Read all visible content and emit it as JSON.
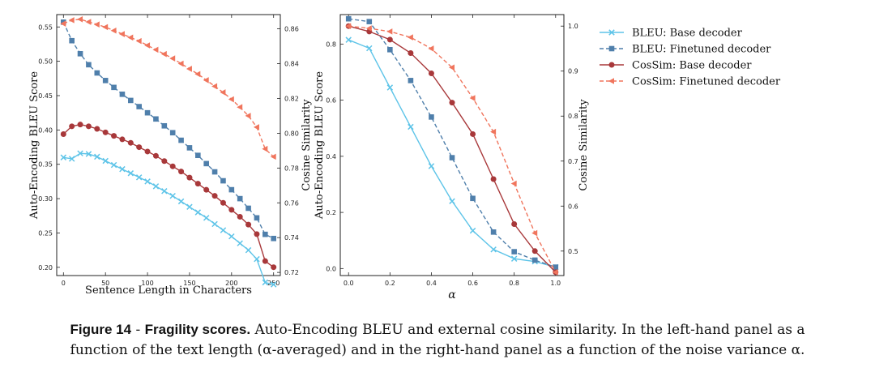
{
  "chart_data": [
    {
      "type": "line",
      "xlabel": "Sentence Length in Characters",
      "ylabel": "Auto-Encoding BLEU Score",
      "y2label": "Cosine Similarity",
      "xlim": [
        -8,
        258
      ],
      "ylim": [
        0.188,
        0.568
      ],
      "y2lim": [
        0.7182,
        0.8682
      ],
      "xticks": [
        0,
        50,
        100,
        150,
        200,
        250
      ],
      "yticks": [
        0.2,
        0.25,
        0.3,
        0.35,
        0.4,
        0.45,
        0.5,
        0.55
      ],
      "y2ticks": [
        0.72,
        0.74,
        0.76,
        0.78,
        0.8,
        0.82,
        0.84,
        0.86
      ],
      "series": [
        {
          "name": "BLEU: Base decoder",
          "axis": "left",
          "color": "#5ec4e8",
          "marker": "x",
          "dash": "solid",
          "x": [
            0,
            10,
            20,
            30,
            40,
            50,
            60,
            70,
            80,
            90,
            100,
            110,
            120,
            130,
            140,
            150,
            160,
            170,
            180,
            190,
            200,
            210,
            220,
            230,
            240,
            250
          ],
          "y": [
            0.36,
            0.358,
            0.366,
            0.365,
            0.361,
            0.355,
            0.349,
            0.343,
            0.337,
            0.331,
            0.325,
            0.318,
            0.311,
            0.304,
            0.296,
            0.288,
            0.28,
            0.272,
            0.263,
            0.254,
            0.245,
            0.235,
            0.225,
            0.212,
            0.178,
            0.175
          ]
        },
        {
          "name": "BLEU: Finetuned decoder",
          "axis": "left",
          "color": "#4f7fab",
          "marker": "square",
          "dash": "dashed",
          "x": [
            0,
            10,
            20,
            30,
            40,
            50,
            60,
            70,
            80,
            90,
            100,
            110,
            120,
            130,
            140,
            150,
            160,
            170,
            180,
            190,
            200,
            210,
            220,
            230,
            240,
            250
          ],
          "y": [
            0.557,
            0.53,
            0.511,
            0.495,
            0.483,
            0.472,
            0.462,
            0.452,
            0.443,
            0.434,
            0.425,
            0.416,
            0.406,
            0.396,
            0.385,
            0.374,
            0.363,
            0.351,
            0.339,
            0.326,
            0.313,
            0.3,
            0.286,
            0.272,
            0.248,
            0.242
          ]
        },
        {
          "name": "CosSim: Base decoder",
          "axis": "right",
          "color": "#a8383a",
          "marker": "circle",
          "dash": "solid",
          "x": [
            0,
            10,
            20,
            30,
            40,
            50,
            60,
            70,
            80,
            90,
            100,
            110,
            120,
            130,
            140,
            150,
            160,
            170,
            180,
            190,
            200,
            210,
            220,
            230,
            240,
            250
          ],
          "y": [
            0.7995,
            0.804,
            0.805,
            0.804,
            0.8025,
            0.8005,
            0.7985,
            0.7965,
            0.7945,
            0.792,
            0.7895,
            0.787,
            0.784,
            0.781,
            0.778,
            0.7745,
            0.771,
            0.7675,
            0.764,
            0.76,
            0.756,
            0.752,
            0.7475,
            0.742,
            0.7265,
            0.723
          ]
        },
        {
          "name": "CosSim: Finetuned decoder",
          "axis": "right",
          "color": "#f0755d",
          "marker": "triangle-left",
          "dash": "dashed",
          "x": [
            0,
            10,
            20,
            30,
            40,
            50,
            60,
            70,
            80,
            90,
            100,
            110,
            120,
            130,
            140,
            150,
            160,
            170,
            180,
            190,
            200,
            210,
            220,
            230,
            240,
            250
          ],
          "y": [
            0.863,
            0.865,
            0.8655,
            0.864,
            0.8625,
            0.861,
            0.859,
            0.857,
            0.855,
            0.853,
            0.8505,
            0.848,
            0.8455,
            0.843,
            0.84,
            0.837,
            0.834,
            0.8305,
            0.827,
            0.8235,
            0.8195,
            0.815,
            0.81,
            0.8035,
            0.791,
            0.7865
          ]
        }
      ]
    },
    {
      "type": "line",
      "xlabel": "α",
      "ylabel": "Auto-Encoding BLEU Score",
      "y2label": "Cosine Similarity",
      "xlim": [
        -0.04,
        1.04
      ],
      "ylim": [
        -0.025,
        0.905
      ],
      "y2lim": [
        0.4456,
        1.0256
      ],
      "xticks": [
        0.0,
        0.2,
        0.4,
        0.6,
        0.8,
        1.0
      ],
      "yticks": [
        0.0,
        0.2,
        0.4,
        0.6,
        0.8
      ],
      "y2ticks": [
        0.5,
        0.6,
        0.7,
        0.8,
        0.9,
        1.0
      ],
      "series": [
        {
          "name": "BLEU: Base decoder",
          "axis": "left",
          "color": "#5ec4e8",
          "marker": "x",
          "dash": "solid",
          "x": [
            0.0,
            0.1,
            0.2,
            0.3,
            0.4,
            0.5,
            0.6,
            0.7,
            0.8,
            0.9,
            1.0
          ],
          "y": [
            0.815,
            0.785,
            0.645,
            0.505,
            0.365,
            0.24,
            0.135,
            0.068,
            0.035,
            0.025,
            0.005
          ]
        },
        {
          "name": "BLEU: Finetuned decoder",
          "axis": "left",
          "color": "#4f7fab",
          "marker": "square",
          "dash": "dashed",
          "x": [
            0.0,
            0.1,
            0.2,
            0.3,
            0.4,
            0.5,
            0.6,
            0.7,
            0.8,
            0.9,
            1.0
          ],
          "y": [
            0.89,
            0.88,
            0.78,
            0.67,
            0.54,
            0.395,
            0.25,
            0.13,
            0.06,
            0.03,
            0.005
          ]
        },
        {
          "name": "CosSim: Base decoder",
          "axis": "right",
          "color": "#a8383a",
          "marker": "circle",
          "dash": "solid",
          "x": [
            0.0,
            0.1,
            0.2,
            0.3,
            0.4,
            0.5,
            0.6,
            0.7,
            0.8,
            0.9,
            1.0
          ],
          "y": [
            1.0,
            0.988,
            0.97,
            0.94,
            0.895,
            0.83,
            0.76,
            0.66,
            0.56,
            0.5,
            0.453
          ]
        },
        {
          "name": "CosSim: Finetuned decoder",
          "axis": "right",
          "color": "#f0755d",
          "marker": "triangle-left",
          "dash": "dashed",
          "x": [
            0.0,
            0.1,
            0.2,
            0.3,
            0.4,
            0.5,
            0.6,
            0.7,
            0.8,
            0.9,
            1.0
          ],
          "y": [
            1.0,
            0.995,
            0.988,
            0.975,
            0.95,
            0.908,
            0.84,
            0.765,
            0.65,
            0.54,
            0.453
          ]
        }
      ]
    }
  ],
  "legend": {
    "placement": "right",
    "entries": [
      "BLEU: Base decoder",
      "BLEU: Finetuned decoder",
      "CosSim: Base decoder",
      "CosSim: Finetuned decoder"
    ]
  },
  "caption": {
    "label": "Figure 14",
    "separator": " - ",
    "title": "Fragility scores.",
    "text_1": " Auto-Encoding BLEU and external cosine similarity. In the left-hand panel as a",
    "text_2": "function of the text length (α-averaged) and in the right-hand panel as a function of the noise variance α."
  }
}
